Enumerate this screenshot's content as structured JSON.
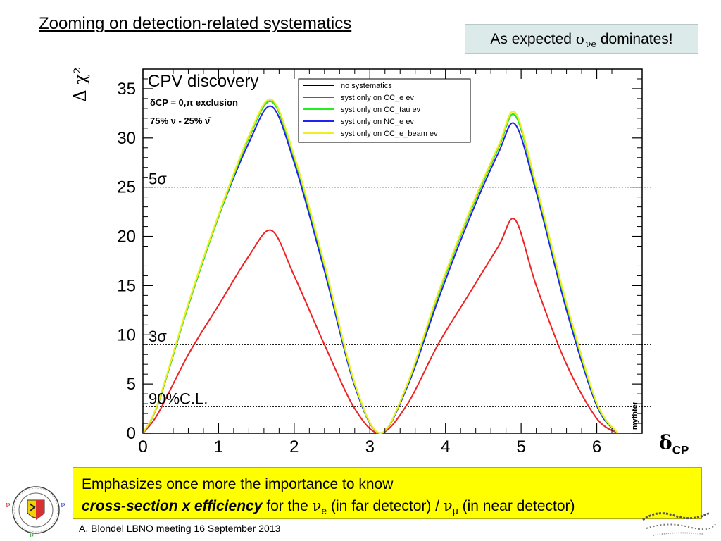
{
  "slide": {
    "title": "Zooming on detection-related systematics",
    "callout": {
      "prefix": "As expected ",
      "symbol": "σ",
      "sub": "νe",
      "suffix": " dominates!"
    },
    "x_unit": {
      "main": "δ",
      "sub": "CP"
    },
    "note": {
      "line1": "Emphasizes once more the importance to know",
      "bold": "cross-section x efficiency",
      "mid": " for the ",
      "nu1": "ν",
      "nu1_sub": "e",
      "mid2": " (in far detector) /  ",
      "nu2": "ν",
      "nu2_sub": "μ",
      "end": " (in near detector)"
    },
    "footer": "A. Blondel   LBNO meeting 16 September 2013",
    "colors": {
      "callout_bg": "#ddeaea",
      "note_bg": "#ffff00"
    }
  },
  "chart_data": {
    "type": "line",
    "ylabel": "Δ χ²",
    "plot_title": "CPV discovery",
    "subtitle_lines": [
      "δCP = 0,π exclusion",
      "75% ν - 25% ν̄"
    ],
    "watermark": "mythter",
    "xlim": [
      0,
      6.6
    ],
    "ylim": [
      0,
      37
    ],
    "xticks": [
      0,
      1,
      2,
      3,
      4,
      5,
      6
    ],
    "yticks": [
      0,
      5,
      10,
      15,
      20,
      25,
      30,
      35
    ],
    "reference_lines": [
      {
        "label": "5σ",
        "y": 25
      },
      {
        "label": "3σ",
        "y": 9
      },
      {
        "label": "90%C.L.",
        "y": 2.7
      }
    ],
    "legend_position": "top-right",
    "series": [
      {
        "name": "no systematics",
        "color": "#000000",
        "x": [
          0,
          0.2,
          0.6,
          1.0,
          1.4,
          1.7,
          2.0,
          2.4,
          2.8,
          3.14,
          3.5,
          3.9,
          4.3,
          4.7,
          4.92,
          5.2,
          5.6,
          6.0,
          6.28
        ],
        "y": [
          0,
          3,
          13,
          22,
          30,
          33.7,
          28,
          17,
          5,
          0,
          5,
          14,
          22,
          29,
          32.3,
          25,
          13,
          3,
          0
        ]
      },
      {
        "name": "syst only on CC_e ev",
        "color": "#ee2222",
        "x": [
          0,
          0.2,
          0.6,
          1.0,
          1.4,
          1.7,
          2.0,
          2.4,
          2.8,
          3.14,
          3.5,
          3.9,
          4.3,
          4.7,
          4.92,
          5.2,
          5.6,
          6.0,
          6.28
        ],
        "y": [
          0,
          2,
          8,
          13,
          18,
          20.6,
          16,
          9,
          2.5,
          0,
          3,
          9,
          14,
          19,
          21.7,
          15,
          7,
          1.5,
          0
        ]
      },
      {
        "name": "syst only on CC_tau ev",
        "color": "#22ee22",
        "x": [
          0,
          0.2,
          0.6,
          1.0,
          1.4,
          1.7,
          2.0,
          2.4,
          2.8,
          3.14,
          3.5,
          3.9,
          4.3,
          4.7,
          4.92,
          5.2,
          5.6,
          6.0,
          6.28
        ],
        "y": [
          0,
          3,
          13,
          22,
          30,
          33.7,
          28,
          17,
          5,
          0,
          5,
          14,
          22,
          29,
          32.3,
          25,
          13,
          3,
          0
        ]
      },
      {
        "name": "syst only on NC_e ev",
        "color": "#2222ee",
        "x": [
          0,
          0.2,
          0.6,
          1.0,
          1.4,
          1.7,
          2.0,
          2.4,
          2.8,
          3.14,
          3.5,
          3.9,
          4.3,
          4.7,
          4.92,
          5.2,
          5.6,
          6.0,
          6.28
        ],
        "y": [
          0,
          3,
          13,
          22,
          29.5,
          33.2,
          27.5,
          16.5,
          4.8,
          0,
          4.8,
          13.5,
          21.5,
          28.5,
          31.4,
          24.5,
          12.5,
          2.8,
          0
        ]
      },
      {
        "name": "syst only on CC_e_beam ev",
        "color": "#eeee22",
        "x": [
          0,
          0.2,
          0.6,
          1.0,
          1.4,
          1.7,
          2.0,
          2.4,
          2.8,
          3.14,
          3.5,
          3.9,
          4.3,
          4.7,
          4.92,
          5.2,
          5.6,
          6.0,
          6.28
        ],
        "y": [
          0,
          3.1,
          13.2,
          22.2,
          30.2,
          33.9,
          28.2,
          17.2,
          5.1,
          0,
          5.1,
          14.2,
          22.2,
          29.2,
          32.6,
          25.2,
          13.2,
          3.1,
          0
        ]
      }
    ]
  }
}
